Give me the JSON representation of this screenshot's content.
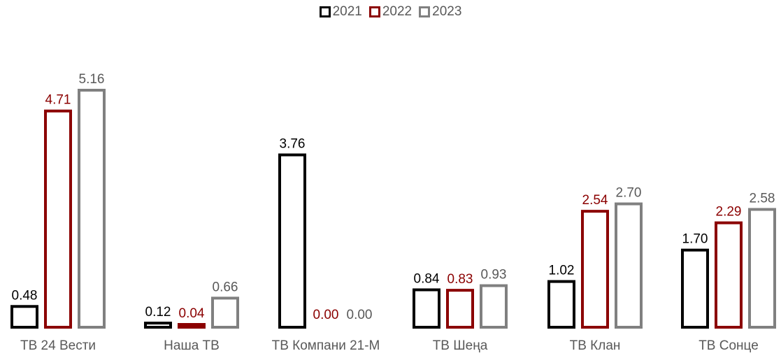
{
  "chart_data": {
    "type": "bar",
    "categories": [
      "ТВ 24 Вести",
      "Наша ТВ",
      "ТВ Компани 21-М",
      "ТВ Шеңа",
      "ТВ Клан",
      "ТВ Сонце"
    ],
    "series": [
      {
        "name": "2021",
        "color": "#000000",
        "values": [
          0.48,
          0.12,
          3.76,
          0.84,
          1.02,
          1.7
        ],
        "labels": [
          "0.48",
          "0.12",
          "3.76",
          "0.84",
          "1.02",
          "1.70"
        ]
      },
      {
        "name": "2022",
        "color": "#8B0000",
        "values": [
          4.71,
          0.04,
          0.0,
          0.83,
          2.54,
          2.29
        ],
        "labels": [
          "4.71",
          "0.04",
          "0.00",
          "0.83",
          "2.54",
          "2.29"
        ]
      },
      {
        "name": "2023",
        "color": "#808080",
        "values": [
          5.16,
          0.66,
          0.0,
          0.93,
          2.7,
          2.58
        ],
        "labels": [
          "5.16",
          "0.66",
          "0.00",
          "0.93",
          "2.70",
          "2.58"
        ]
      }
    ],
    "ylim": [
      0,
      5.16
    ],
    "legend_position": "top-center",
    "grid": false,
    "title": "",
    "xlabel": "",
    "ylabel": ""
  }
}
